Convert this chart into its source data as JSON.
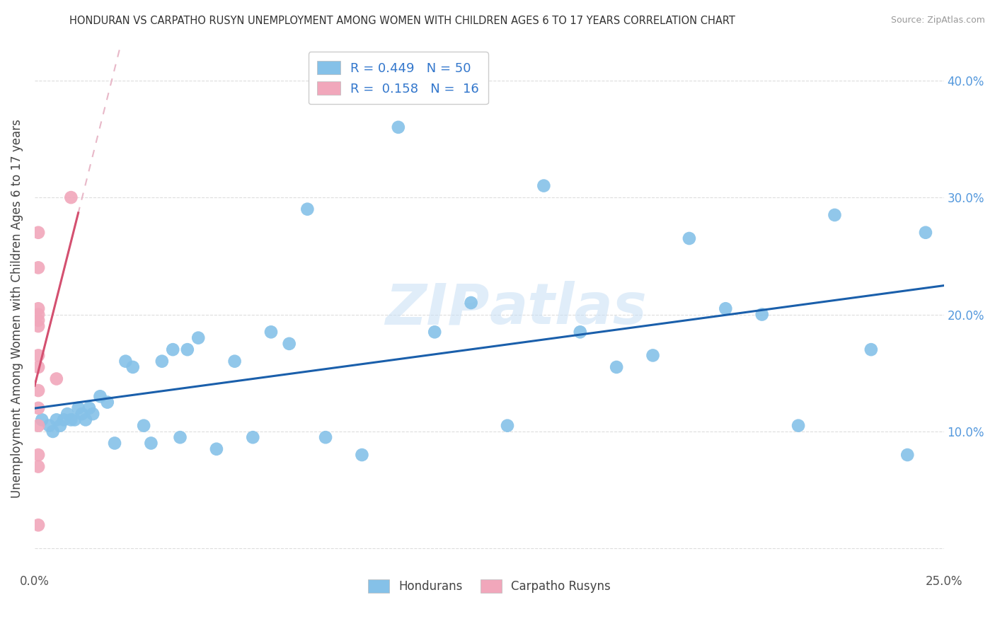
{
  "title": "HONDURAN VS CARPATHO RUSYN UNEMPLOYMENT AMONG WOMEN WITH CHILDREN AGES 6 TO 17 YEARS CORRELATION CHART",
  "source": "Source: ZipAtlas.com",
  "ylabel": "Unemployment Among Women with Children Ages 6 to 17 years",
  "xlim": [
    0.0,
    0.25
  ],
  "ylim": [
    -0.02,
    0.43
  ],
  "x_ticks": [
    0.0,
    0.05,
    0.1,
    0.15,
    0.2,
    0.25
  ],
  "y_ticks": [
    0.0,
    0.1,
    0.2,
    0.3,
    0.4
  ],
  "honduran_color": "#85C1E8",
  "carpatho_color": "#F1A7BB",
  "trend_blue": "#1A5FAB",
  "trend_pink": "#D45070",
  "trend_dashed_color": "#E8B8C8",
  "legend_R_blue": "0.449",
  "legend_N_blue": "50",
  "legend_R_pink": "0.158",
  "legend_N_pink": "16",
  "honduran_x": [
    0.002,
    0.004,
    0.005,
    0.006,
    0.007,
    0.008,
    0.009,
    0.01,
    0.011,
    0.012,
    0.013,
    0.014,
    0.015,
    0.016,
    0.018,
    0.02,
    0.022,
    0.025,
    0.027,
    0.03,
    0.032,
    0.035,
    0.038,
    0.04,
    0.042,
    0.045,
    0.05,
    0.055,
    0.06,
    0.065,
    0.07,
    0.075,
    0.08,
    0.09,
    0.1,
    0.11,
    0.12,
    0.13,
    0.14,
    0.15,
    0.16,
    0.17,
    0.18,
    0.19,
    0.2,
    0.21,
    0.22,
    0.23,
    0.24,
    0.245
  ],
  "honduran_y": [
    0.11,
    0.105,
    0.1,
    0.11,
    0.105,
    0.11,
    0.115,
    0.11,
    0.11,
    0.12,
    0.115,
    0.11,
    0.12,
    0.115,
    0.13,
    0.125,
    0.09,
    0.16,
    0.155,
    0.105,
    0.09,
    0.16,
    0.17,
    0.095,
    0.17,
    0.18,
    0.085,
    0.16,
    0.095,
    0.185,
    0.175,
    0.29,
    0.095,
    0.08,
    0.36,
    0.185,
    0.21,
    0.105,
    0.31,
    0.185,
    0.155,
    0.165,
    0.265,
    0.205,
    0.2,
    0.105,
    0.285,
    0.17,
    0.08,
    0.27
  ],
  "carpatho_x": [
    0.001,
    0.001,
    0.001,
    0.001,
    0.001,
    0.001,
    0.001,
    0.001,
    0.001,
    0.001,
    0.001,
    0.001,
    0.001,
    0.001,
    0.006,
    0.01
  ],
  "carpatho_y": [
    0.02,
    0.07,
    0.08,
    0.105,
    0.12,
    0.135,
    0.155,
    0.165,
    0.19,
    0.195,
    0.2,
    0.205,
    0.24,
    0.27,
    0.145,
    0.3
  ],
  "background_color": "#FFFFFF",
  "grid_color": "#DDDDDD"
}
